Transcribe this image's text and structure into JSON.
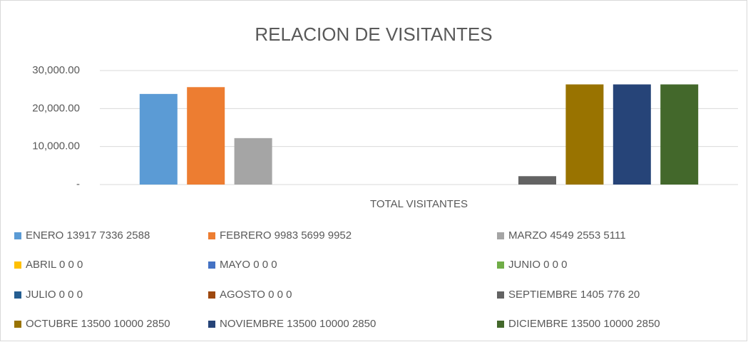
{
  "chart_data": {
    "type": "bar",
    "title": "RELACION DE VISITANTES",
    "categories": [
      "TOTAL VISITANTES"
    ],
    "series": [
      {
        "name": "ENERO 13917 7336 2588",
        "color": "#5b9bd5",
        "values": [
          23841
        ]
      },
      {
        "name": "FEBRERO 9983 5699 9952",
        "color": "#ed7d31",
        "values": [
          25634
        ]
      },
      {
        "name": "MARZO 4549 2553 5111",
        "color": "#a5a5a5",
        "values": [
          12213
        ]
      },
      {
        "name": "ABRIL 0 0 0",
        "color": "#ffc000",
        "values": [
          0
        ]
      },
      {
        "name": "MAYO 0 0 0",
        "color": "#4472c4",
        "values": [
          0
        ]
      },
      {
        "name": "JUNIO 0 0 0",
        "color": "#70ad47",
        "values": [
          0
        ]
      },
      {
        "name": "JULIO 0 0 0",
        "color": "#255e91",
        "values": [
          0
        ]
      },
      {
        "name": "AGOSTO 0 0 0",
        "color": "#9e480e",
        "values": [
          0
        ]
      },
      {
        "name": "SEPTIEMBRE 1405 776 20",
        "color": "#636363",
        "values": [
          2201
        ]
      },
      {
        "name": "OCTUBRE 13500 10000 2850",
        "color": "#997300",
        "values": [
          26350
        ]
      },
      {
        "name": "NOVIEMBRE 13500 10000 2850",
        "color": "#264478",
        "values": [
          26350
        ]
      },
      {
        "name": "DICIEMBRE 13500 10000 2850",
        "color": "#43682b",
        "values": [
          26350
        ]
      }
    ],
    "ylim": [
      0,
      30000
    ],
    "yticks": [
      {
        "value": 0,
        "label": "-"
      },
      {
        "value": 10000,
        "label": "10,000.00"
      },
      {
        "value": 20000,
        "label": "20,000.00"
      },
      {
        "value": 30000,
        "label": "30,000.00"
      }
    ],
    "grid": true,
    "legend": "bottom"
  }
}
